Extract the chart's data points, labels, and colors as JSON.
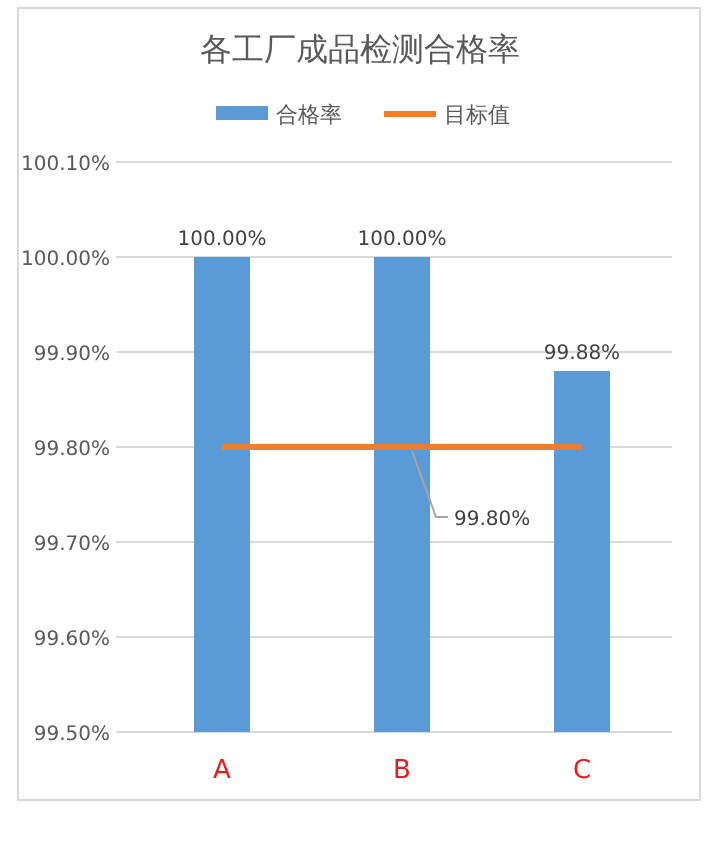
{
  "chart_data": {
    "type": "bar",
    "title": "各工厂成品检测合格率",
    "categories": [
      "A",
      "B",
      "C"
    ],
    "series": [
      {
        "name": "合格率",
        "color": "#5b9bd5",
        "values": [
          100.0,
          100.0,
          99.88
        ],
        "value_labels": [
          "100.00%",
          "100.00%",
          "99.88%"
        ]
      },
      {
        "name": "目标值",
        "type": "line",
        "color": "#ed7d31",
        "values": [
          99.8,
          99.8,
          99.8
        ]
      }
    ],
    "ylim": [
      99.5,
      100.1
    ],
    "yticks": [
      {
        "value": 99.5,
        "label": "99.50%"
      },
      {
        "value": 99.6,
        "label": "99.60%"
      },
      {
        "value": 99.7,
        "label": "99.70%"
      },
      {
        "value": 99.8,
        "label": "99.80%"
      },
      {
        "value": 99.9,
        "label": "99.90%"
      },
      {
        "value": 100.0,
        "label": "100.00%"
      },
      {
        "value": 100.1,
        "label": "100.10%"
      }
    ],
    "grid": "y",
    "legend": "top",
    "marker": "none",
    "annotations": [
      {
        "text": "99.80%",
        "x": "B",
        "y": 99.8
      }
    ]
  }
}
